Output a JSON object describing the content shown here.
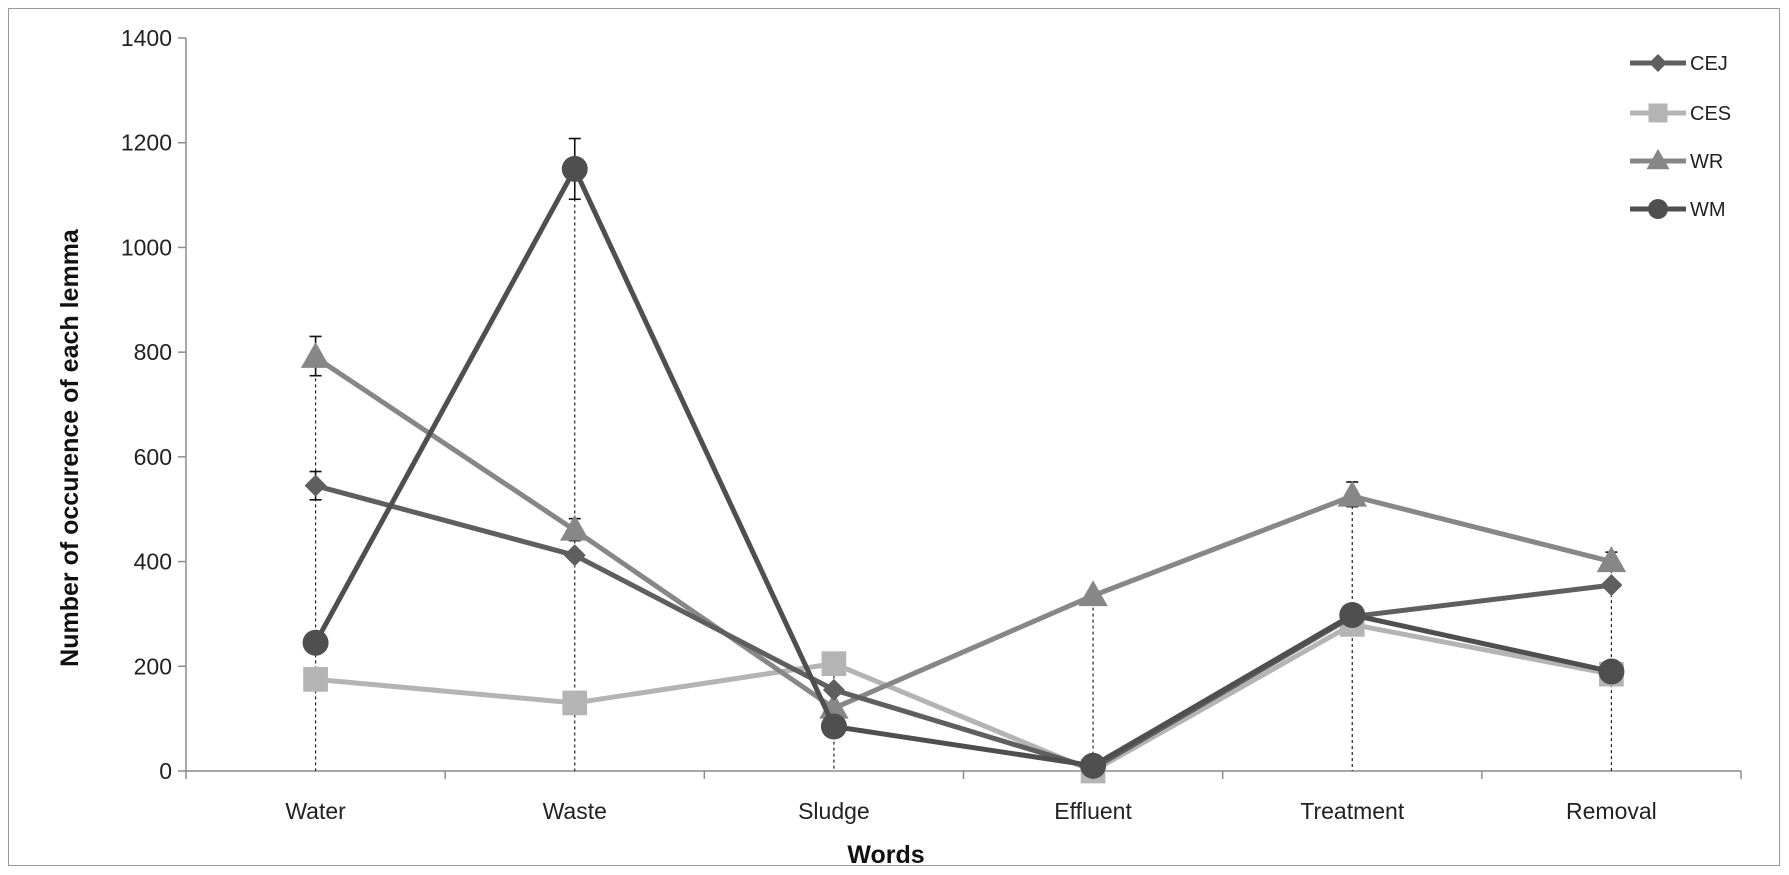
{
  "chart_data": {
    "type": "line",
    "title": "",
    "xlabel": "Words",
    "ylabel": "Number of occurence of each lemma",
    "categories": [
      "Water",
      "Waste",
      "Sludge",
      "Effluent",
      "Treatment",
      "Removal"
    ],
    "ylim": [
      0,
      1400
    ],
    "yticks": [
      0,
      200,
      400,
      600,
      800,
      1000,
      1200,
      1400
    ],
    "grid": false,
    "legend_position": "top-right",
    "series": [
      {
        "name": "CEJ",
        "marker": "diamond",
        "color": "#5f5f5f",
        "values": [
          545,
          412,
          155,
          5,
          295,
          355
        ]
      },
      {
        "name": "CES",
        "marker": "square",
        "color": "#b4b4b4",
        "values": [
          175,
          130,
          205,
          0,
          280,
          185
        ]
      },
      {
        "name": "WR",
        "marker": "triangle",
        "color": "#878787",
        "values": [
          790,
          460,
          120,
          335,
          525,
          400
        ]
      },
      {
        "name": "WM",
        "marker": "circle",
        "color": "#4f4f4f",
        "values": [
          245,
          1150,
          85,
          10,
          298,
          190
        ]
      }
    ],
    "error_bars": [
      {
        "series": "WR",
        "category": "Water",
        "low": 755,
        "high": 830
      },
      {
        "series": "CEJ",
        "category": "Water",
        "low": 518,
        "high": 572
      },
      {
        "series": "WM",
        "category": "Waste",
        "low": 1092,
        "high": 1208
      },
      {
        "series": "WR",
        "category": "Waste",
        "low": 440,
        "high": 482
      },
      {
        "series": "WR",
        "category": "Treatment",
        "low": 505,
        "high": 552
      },
      {
        "series": "WR",
        "category": "Removal",
        "low": 385,
        "high": 418
      }
    ]
  }
}
